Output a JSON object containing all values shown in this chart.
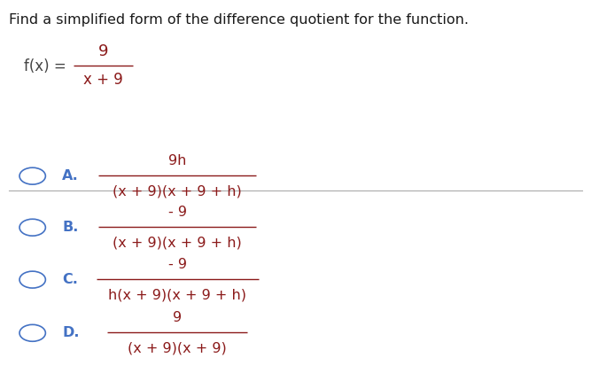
{
  "title": "Find a simplified form of the difference quotient for the function.",
  "title_color": "#1a1a1a",
  "title_fontsize": 11.5,
  "bg_color": "#ffffff",
  "fx_label_color": "#444444",
  "fx_fraction_color": "#8b1a1a",
  "fx_numerator": "9",
  "fx_denominator": "x + 9",
  "option_label_color": "#4472c4",
  "option_fraction_color": "#8b1a1a",
  "circle_color": "#4472c4",
  "line_color": "#aaaaaa",
  "options": [
    {
      "label": "A.",
      "numerator": "9h",
      "denominator": "(x + 9)(x + 9 + h)"
    },
    {
      "label": "B.",
      "numerator": "- 9",
      "denominator": "(x + 9)(x + 9 + h)"
    },
    {
      "label": "C.",
      "numerator": "- 9",
      "denominator": "h(x + 9)(x + 9 + h)"
    },
    {
      "label": "D.",
      "numerator": "9",
      "denominator": "(x + 9)(x + 9)"
    }
  ]
}
